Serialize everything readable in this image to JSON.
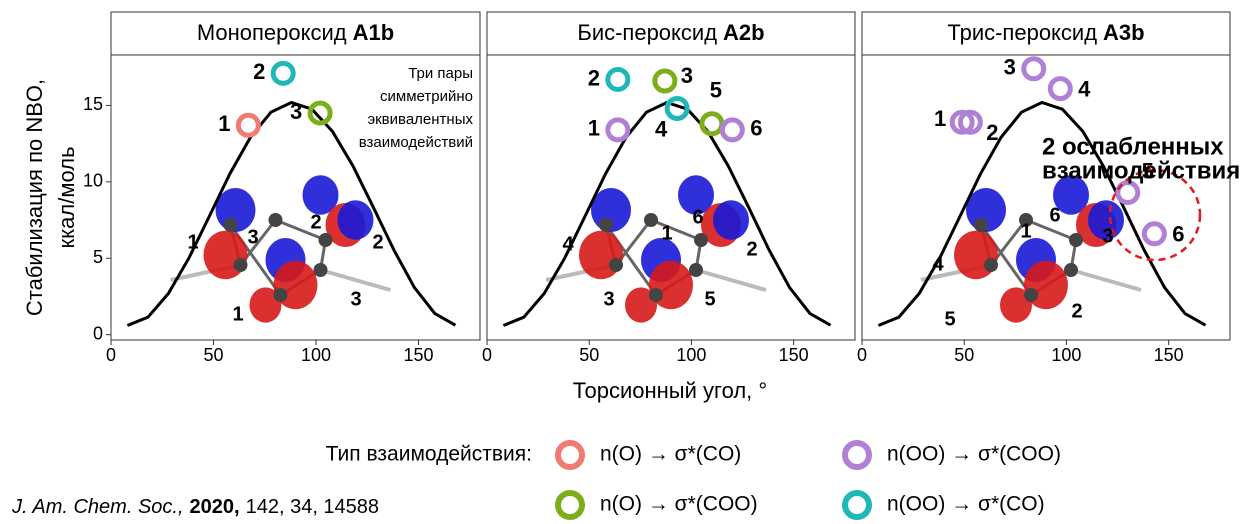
{
  "chart_data": {
    "type": "scatter",
    "ylabel": [
      "Стабилизация по NBO,",
      "ккал/моль"
    ],
    "xlabel": "Торсионный угол, °",
    "xlim": [
      0,
      180
    ],
    "xticks": [
      0,
      50,
      100,
      150
    ],
    "ylim": [
      -0.35,
      18.3
    ],
    "yticks": [
      0,
      5,
      10,
      15
    ],
    "legend_title": "Тип взаимодействия:",
    "series": [
      {
        "name": "n(O) → σ*(CO)",
        "color": "#f07b72"
      },
      {
        "name": "n(O) → σ*(COO)",
        "color": "#7cae1c"
      },
      {
        "name": "n(OO) → σ*(COO)",
        "color": "#b07fd6"
      },
      {
        "name": "n(OO) → σ*(CO)",
        "color": "#1fb7b7"
      }
    ],
    "curve": {
      "x": [
        8,
        18,
        28,
        38,
        48,
        58,
        68,
        78,
        88,
        98,
        108,
        118,
        128,
        138,
        148,
        158,
        168
      ],
      "values": [
        0.6,
        1.14,
        2.69,
        5.01,
        7.76,
        10.53,
        12.91,
        14.56,
        15.19,
        14.75,
        13.31,
        11.05,
        8.33,
        5.54,
        3.08,
        1.38,
        0.62
      ]
    },
    "panels": [
      {
        "title": "Монопероксид",
        "title_bold": "A1b",
        "annotation": [
          "Три пары",
          "симметрийно",
          "эквивалентных",
          "взаимодействий"
        ],
        "series": [
          {
            "x": [
              67
            ],
            "values": [
              13.7
            ],
            "labels": [
              "1"
            ],
            "arrow_labels": [
              "1",
              "1"
            ]
          },
          {
            "x": [
              102
            ],
            "values": [
              14.5
            ],
            "labels": [
              "3"
            ],
            "arrow_labels": [
              "3",
              "3"
            ]
          },
          {
            "x": [],
            "values": [],
            "labels": [],
            "arrow_labels": []
          },
          {
            "x": [
              84
            ],
            "values": [
              17.1
            ],
            "labels": [
              "2"
            ],
            "arrow_labels": [
              "2",
              "2"
            ]
          }
        ]
      },
      {
        "title": "Бис-пероксид",
        "title_bold": "A2b",
        "series": [
          {
            "x": [],
            "values": [],
            "labels": [],
            "arrow_labels": []
          },
          {
            "x": [
              87,
              110
            ],
            "values": [
              16.6,
              13.8
            ],
            "labels": [
              "3",
              "5"
            ],
            "arrow_labels": [
              "3",
              "5"
            ]
          },
          {
            "x": [
              64,
              120
            ],
            "values": [
              13.4,
              13.4
            ],
            "labels": [
              "1",
              "6"
            ],
            "arrow_labels": [
              "1",
              "6"
            ]
          },
          {
            "x": [
              64,
              93
            ],
            "values": [
              16.7,
              14.8
            ],
            "labels": [
              "2",
              "4"
            ],
            "arrow_labels": [
              "4",
              "2"
            ]
          }
        ]
      },
      {
        "title": "Трис-пероксид",
        "title_bold": "A3b",
        "annotation": [
          "2 ослабленных",
          "взаимодействия"
        ],
        "series": [
          {
            "x": [],
            "values": [],
            "labels": [],
            "arrow_labels": []
          },
          {
            "x": [],
            "values": [],
            "labels": [],
            "arrow_labels": []
          },
          {
            "x": [
              49,
              53,
              84,
              97,
              130,
              143
            ],
            "values": [
              13.9,
              13.9,
              17.4,
              16.1,
              9.3,
              6.6
            ],
            "labels": [
              "1",
              "2",
              "3",
              "4",
              "5",
              "6"
            ],
            "arrow_labels": [
              "1",
              "2",
              "3",
              "4",
              "5",
              "6"
            ]
          },
          {
            "x": [],
            "values": [],
            "labels": [],
            "arrow_labels": []
          }
        ]
      }
    ],
    "citation": {
      "journal": "J. Am. Chem. Soc.,",
      "year": "2020,",
      "rest": "142, 34, 14588"
    }
  }
}
